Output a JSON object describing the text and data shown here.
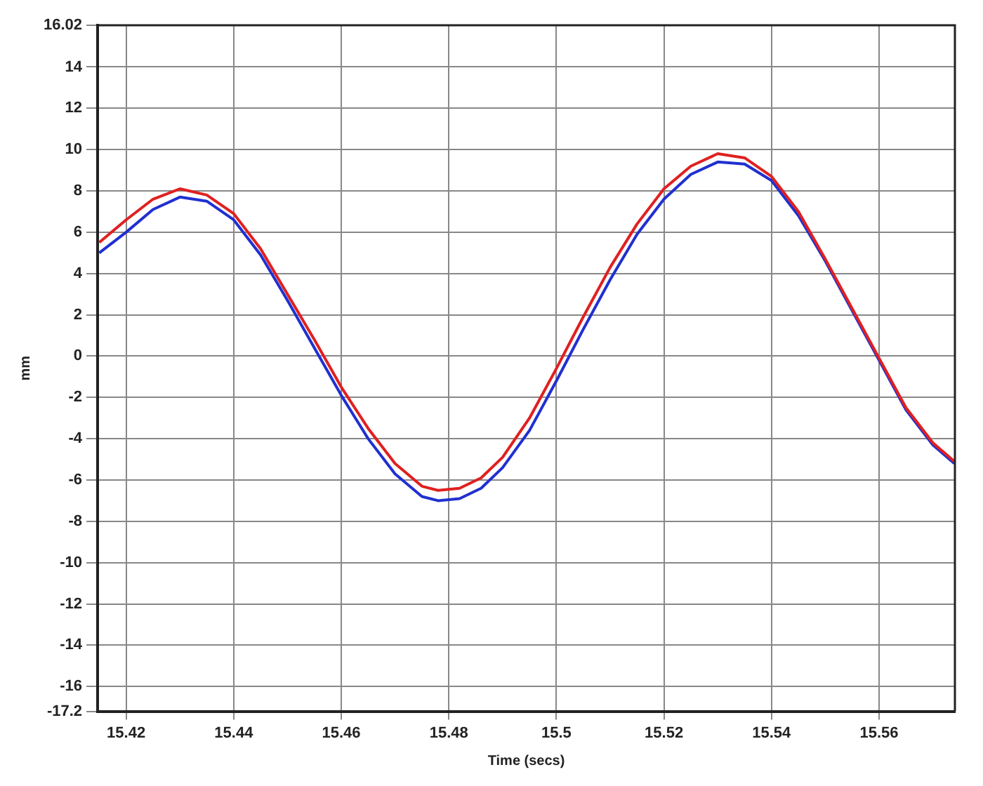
{
  "chart_data": {
    "type": "line",
    "xlabel": "Time (secs)",
    "ylabel": "mm",
    "xlim": [
      15.4147,
      15.5741
    ],
    "xticks": [
      15.42,
      15.44,
      15.46,
      15.48,
      15.5,
      15.52,
      15.54,
      15.56
    ],
    "ylim": [
      -17.2,
      16.02
    ],
    "yticks": [
      -17.2,
      -16,
      -14,
      -12,
      -10,
      -8,
      -6,
      -4,
      -2,
      0,
      2,
      4,
      6,
      8,
      10,
      12,
      14,
      16.02
    ],
    "grid": true,
    "marker": "none",
    "line_style": "solid",
    "x": [
      15.415,
      15.42,
      15.425,
      15.43,
      15.435,
      15.44,
      15.445,
      15.45,
      15.455,
      15.46,
      15.465,
      15.47,
      15.475,
      15.478,
      15.482,
      15.486,
      15.49,
      15.495,
      15.5,
      15.505,
      15.51,
      15.515,
      15.52,
      15.525,
      15.53,
      15.535,
      15.54,
      15.545,
      15.55,
      15.555,
      15.56,
      15.565,
      15.57,
      15.574
    ],
    "series": [
      {
        "color": "#e02020",
        "values": [
          5.5,
          6.6,
          7.6,
          8.1,
          7.8,
          6.9,
          5.2,
          3.0,
          0.8,
          -1.5,
          -3.5,
          -5.2,
          -6.3,
          -6.5,
          -6.4,
          -5.9,
          -4.9,
          -3.0,
          -0.6,
          1.9,
          4.3,
          6.4,
          8.1,
          9.2,
          9.8,
          9.6,
          8.7,
          7.0,
          4.7,
          2.3,
          -0.1,
          -2.5,
          -4.2,
          -5.1
        ]
      },
      {
        "color": "#2030d0",
        "values": [
          5.0,
          6.0,
          7.1,
          7.7,
          7.5,
          6.6,
          4.9,
          2.7,
          0.4,
          -1.9,
          -4.0,
          -5.7,
          -6.8,
          -7.0,
          -6.9,
          -6.4,
          -5.4,
          -3.6,
          -1.2,
          1.3,
          3.7,
          5.9,
          7.6,
          8.8,
          9.4,
          9.3,
          8.5,
          6.8,
          4.6,
          2.2,
          -0.2,
          -2.6,
          -4.3,
          -5.2
        ]
      }
    ]
  }
}
